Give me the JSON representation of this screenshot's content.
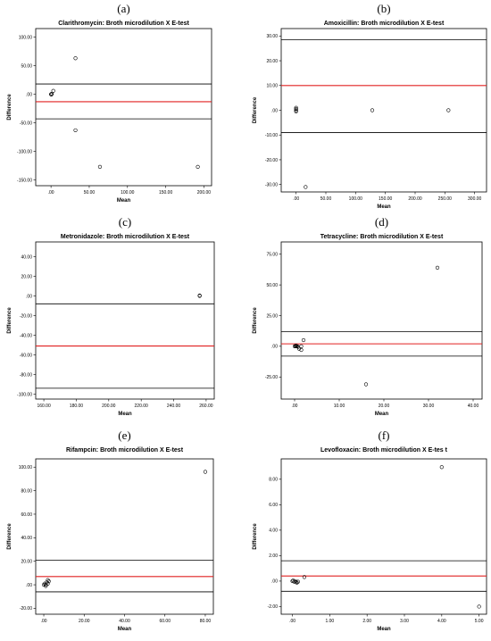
{
  "figure": {
    "letters": [
      "(a)",
      "(b)",
      "(c)",
      "(d)",
      "(e)",
      "(f)"
    ]
  },
  "chart_data": [
    {
      "type": "scatter",
      "title": "Clarithromycin: Broth microdilution X E-test",
      "xlabel": "Mean",
      "ylabel": "Difference",
      "xlim": [
        -20,
        210
      ],
      "ylim": [
        -160,
        115
      ],
      "xticks": [
        0,
        50,
        100,
        150,
        200
      ],
      "xtick_labels": [
        ".00",
        "50.00",
        "100.00",
        "150.00",
        "200.00"
      ],
      "yticks": [
        100,
        50,
        0,
        -50,
        -100,
        -150
      ],
      "ytick_labels": [
        "100.00",
        "50.00",
        ".00",
        "-50.00",
        "-100.00",
        "-150.00"
      ],
      "points": [
        [
          0,
          0
        ],
        [
          1,
          1
        ],
        [
          0.5,
          -0.5
        ],
        [
          3,
          6
        ],
        [
          32,
          63
        ],
        [
          32,
          -63
        ],
        [
          64,
          -127
        ],
        [
          192,
          -127
        ]
      ],
      "mean_line": -13,
      "upper_loa": 18,
      "lower_loa": -43,
      "colors": {
        "mean_line": "#e02020",
        "loa": "#000000"
      }
    },
    {
      "type": "scatter",
      "title": "Amoxicillin: Broth microdilution X E-test",
      "xlabel": "Mean",
      "ylabel": "Difference",
      "xlim": [
        -25,
        320
      ],
      "ylim": [
        -33,
        33
      ],
      "xticks": [
        0,
        50,
        100,
        150,
        200,
        250,
        300
      ],
      "xtick_labels": [
        ".00",
        "50.00",
        "100.00",
        "150.00",
        "200.00",
        "250.00",
        "300.00"
      ],
      "yticks": [
        30,
        20,
        10,
        0,
        -10,
        -20,
        -30
      ],
      "ytick_labels": [
        "30.00",
        "20.00",
        "10.00",
        ".00",
        "-10.00",
        "-20.00",
        "-30.00"
      ],
      "points": [
        [
          0,
          0
        ],
        [
          0,
          0.5
        ],
        [
          0,
          -0.5
        ],
        [
          0,
          1
        ],
        [
          16,
          -31
        ],
        [
          128,
          0
        ],
        [
          256,
          0
        ]
      ],
      "mean_line": 10,
      "upper_loa": 28.5,
      "lower_loa": -9,
      "colors": {
        "mean_line": "#e02020",
        "loa": "#000000"
      }
    },
    {
      "type": "scatter",
      "title": "Metronidazole: Broth microdilution X E-test",
      "xlabel": "Mean",
      "ylabel": "Difference",
      "xlim": [
        155,
        265
      ],
      "ylim": [
        -105,
        55
      ],
      "xticks": [
        160,
        180,
        200,
        220,
        240,
        260
      ],
      "xtick_labels": [
        "160.00",
        "180.00",
        "200.00",
        "220.00",
        "240.00",
        "260.00"
      ],
      "yticks": [
        40,
        20,
        0,
        -20,
        -40,
        -60,
        -80,
        -100
      ],
      "ytick_labels": [
        "40.00",
        "20.00",
        ".00",
        "-20.00",
        "-40.00",
        "-60.00",
        "-80.00",
        "-100.00"
      ],
      "points": [
        [
          256,
          0
        ],
        [
          256,
          0.5
        ]
      ],
      "mean_line": -51,
      "upper_loa": -8,
      "lower_loa": -94,
      "colors": {
        "mean_line": "#e02020",
        "loa": "#000000"
      }
    },
    {
      "type": "scatter",
      "title": "Tetracycline: Broth microdilution X E-test",
      "xlabel": "Mean",
      "ylabel": "Difference",
      "xlim": [
        -3,
        42
      ],
      "ylim": [
        -43,
        85
      ],
      "xticks": [
        0,
        10,
        20,
        30,
        40
      ],
      "xtick_labels": [
        ".00",
        "10.00",
        "20.00",
        "30.00",
        "40.00"
      ],
      "yticks": [
        75,
        50,
        25,
        0,
        -25
      ],
      "ytick_labels": [
        "75.00",
        "50.00",
        "25.00",
        ".00",
        "-25.00"
      ],
      "points": [
        [
          0,
          0
        ],
        [
          0.2,
          0
        ],
        [
          0.4,
          0
        ],
        [
          0.6,
          0
        ],
        [
          0.3,
          0.5
        ],
        [
          0.8,
          -0.5
        ],
        [
          1,
          -2
        ],
        [
          1.5,
          -3
        ],
        [
          1.5,
          0
        ],
        [
          2,
          5
        ],
        [
          16,
          -31
        ],
        [
          32,
          64
        ]
      ],
      "mean_line": 2,
      "upper_loa": 12,
      "lower_loa": -8,
      "colors": {
        "mean_line": "#e02020",
        "loa": "#000000"
      }
    },
    {
      "type": "scatter",
      "title": "Rifampcin: Broth microdilution X E-test",
      "xlabel": "Mean",
      "ylabel": "Difference",
      "xlim": [
        -4,
        84
      ],
      "ylim": [
        -25,
        107
      ],
      "xticks": [
        0,
        20,
        40,
        60,
        80
      ],
      "xtick_labels": [
        ".00",
        "20.00",
        "40.00",
        "60.00",
        "80.00"
      ],
      "yticks": [
        100,
        80,
        60,
        40,
        20,
        0,
        -20
      ],
      "ytick_labels": [
        "100.00",
        "80.00",
        "60.00",
        "40.00",
        "20.00",
        ".00",
        "-20.00"
      ],
      "points": [
        [
          0,
          0
        ],
        [
          0.5,
          1
        ],
        [
          1,
          0
        ],
        [
          1.5,
          2
        ],
        [
          2,
          1
        ],
        [
          1,
          -1
        ],
        [
          2,
          4
        ],
        [
          2.5,
          3
        ],
        [
          80,
          96
        ]
      ],
      "mean_line": 7,
      "upper_loa": 21,
      "lower_loa": -6,
      "colors": {
        "mean_line": "#e02020",
        "loa": "#000000"
      }
    },
    {
      "type": "scatter",
      "title": "Levofloxacin: Broth microdilution X E-tes t",
      "xlabel": "Mean",
      "ylabel": "Difference",
      "xlim": [
        -0.3,
        5.2
      ],
      "ylim": [
        -2.6,
        9.6
      ],
      "xticks": [
        0,
        1,
        2,
        3,
        4,
        5
      ],
      "xtick_labels": [
        ".00",
        "1.00",
        "2.00",
        "3.00",
        "4.00",
        "5.00"
      ],
      "yticks": [
        8,
        6,
        4,
        2,
        0,
        -2
      ],
      "ytick_labels": [
        "8.00",
        "6.00",
        "4.00",
        "2.00",
        ".00",
        "-2.00"
      ],
      "points": [
        [
          0,
          0
        ],
        [
          0.02,
          0.05
        ],
        [
          0.05,
          -0.05
        ],
        [
          0.08,
          0
        ],
        [
          0.1,
          -0.08
        ],
        [
          0.12,
          -0.12
        ],
        [
          0.15,
          -0.05
        ],
        [
          0.32,
          0.32
        ],
        [
          4,
          8.95
        ],
        [
          5,
          -2
        ]
      ],
      "mean_line": 0.4,
      "upper_loa": 1.6,
      "lower_loa": -0.8,
      "colors": {
        "mean_line": "#e02020",
        "loa": "#000000"
      }
    }
  ]
}
